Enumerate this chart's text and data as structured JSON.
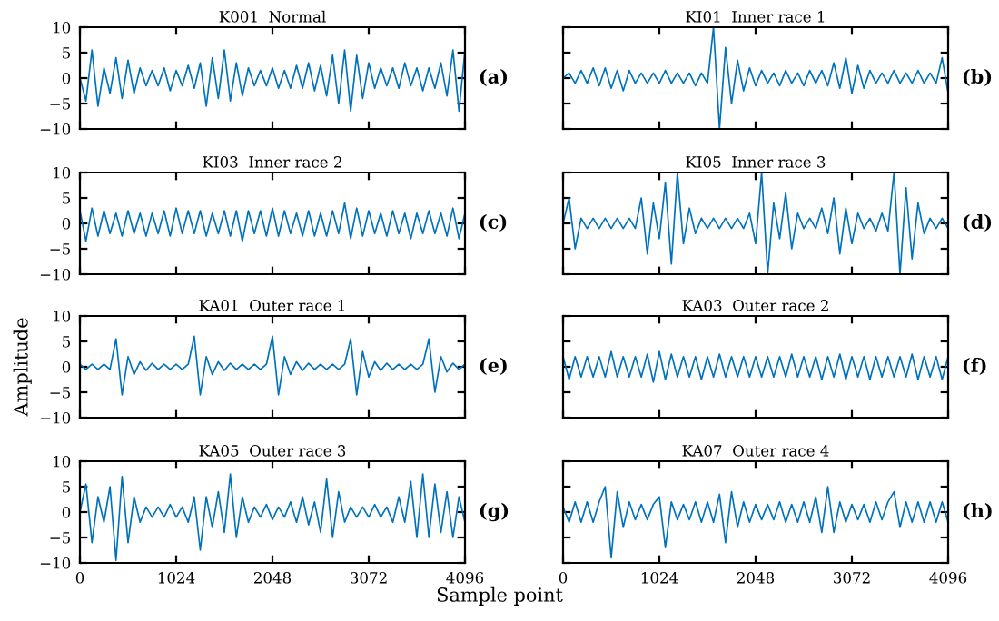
{
  "chart_data": [
    {
      "type": "line",
      "title": "K001  Normal",
      "annotations": [
        "(a)"
      ],
      "tick_labels": "y",
      "xlim": [
        0,
        4096
      ],
      "ylim": [
        -10,
        10
      ],
      "xticks": [
        0,
        1024,
        2048,
        3072,
        4096
      ],
      "yticks": [
        -10,
        -5,
        0,
        5,
        10
      ],
      "x": [
        0,
        64,
        128,
        192,
        256,
        320,
        384,
        448,
        512,
        576,
        640,
        704,
        768,
        832,
        896,
        960,
        1024,
        1088,
        1152,
        1216,
        1280,
        1344,
        1408,
        1472,
        1536,
        1600,
        1664,
        1728,
        1792,
        1856,
        1920,
        1984,
        2048,
        2112,
        2176,
        2240,
        2304,
        2368,
        2432,
        2496,
        2560,
        2624,
        2688,
        2752,
        2816,
        2880,
        2944,
        3008,
        3072,
        3136,
        3200,
        3264,
        3328,
        3392,
        3456,
        3520,
        3584,
        3648,
        3712,
        3776,
        3840,
        3904,
        3968,
        4032,
        4096
      ],
      "series": [
        {
          "color": "#0072bd",
          "values": [
            0,
            -4.5,
            5.5,
            -5.5,
            2,
            -3,
            4,
            -4,
            3.5,
            -3,
            2,
            -1.5,
            1.5,
            -1.5,
            2,
            -2.5,
            1.5,
            -1.5,
            2.5,
            -2,
            3,
            -5.5,
            4,
            -4,
            5.5,
            -4.5,
            3,
            -3.5,
            2,
            -1.5,
            1.5,
            -1.5,
            2,
            -2,
            1.5,
            -2,
            2.5,
            -2,
            3,
            -2.5,
            2.5,
            -3.5,
            4.5,
            -5,
            5.5,
            -6.5,
            4.5,
            -4,
            3,
            -2,
            2,
            -1.5,
            2,
            -2,
            3,
            -1.5,
            2,
            -2.5,
            2,
            -2,
            3,
            -3.5,
            5.5,
            -6.5,
            5.5
          ]
        }
      ]
    },
    {
      "type": "line",
      "title": "KI01  Inner race 1",
      "annotations": [
        "(b)"
      ],
      "tick_labels": false,
      "xlim": [
        0,
        4096
      ],
      "ylim": [
        -10,
        10
      ],
      "xticks": [
        0,
        1024,
        2048,
        3072,
        4096
      ],
      "yticks": [
        -10,
        -5,
        0,
        5,
        10
      ],
      "x": [
        0,
        64,
        128,
        192,
        256,
        320,
        384,
        448,
        512,
        576,
        640,
        704,
        768,
        832,
        896,
        960,
        1024,
        1088,
        1152,
        1216,
        1280,
        1344,
        1408,
        1472,
        1536,
        1600,
        1664,
        1728,
        1792,
        1856,
        1920,
        1984,
        2048,
        2112,
        2176,
        2240,
        2304,
        2368,
        2432,
        2496,
        2560,
        2624,
        2688,
        2752,
        2816,
        2880,
        2944,
        3008,
        3072,
        3136,
        3200,
        3264,
        3328,
        3392,
        3456,
        3520,
        3584,
        3648,
        3712,
        3776,
        3840,
        3904,
        3968,
        4032,
        4096
      ],
      "series": [
        {
          "color": "#0072bd",
          "values": [
            0,
            1,
            -1,
            1.5,
            -1,
            2,
            -1.5,
            2,
            -2,
            1.5,
            -2.5,
            1.5,
            -1,
            1,
            -1,
            1,
            -1,
            1.5,
            -1,
            1,
            -1,
            1,
            -1.5,
            1,
            -1,
            10,
            -10,
            6,
            -5,
            3.5,
            -2.5,
            2,
            -1.5,
            1.5,
            -1,
            1,
            -1.5,
            1.5,
            -1,
            1,
            -1.5,
            1.5,
            -1,
            1.5,
            -1.5,
            3,
            -2,
            4,
            -3,
            2.5,
            -2,
            1.5,
            -1,
            1,
            -1,
            1.5,
            -1,
            1,
            -1,
            1.5,
            -1,
            1,
            -1,
            4,
            -3
          ]
        }
      ]
    },
    {
      "type": "line",
      "title": "KI03  Inner race 2",
      "annotations": [
        "(c)"
      ],
      "tick_labels": "y",
      "xlim": [
        0,
        4096
      ],
      "ylim": [
        -10,
        10
      ],
      "xticks": [
        0,
        1024,
        2048,
        3072,
        4096
      ],
      "yticks": [
        -10,
        -5,
        0,
        5,
        10
      ],
      "x": [
        0,
        64,
        128,
        192,
        256,
        320,
        384,
        448,
        512,
        576,
        640,
        704,
        768,
        832,
        896,
        960,
        1024,
        1088,
        1152,
        1216,
        1280,
        1344,
        1408,
        1472,
        1536,
        1600,
        1664,
        1728,
        1792,
        1856,
        1920,
        1984,
        2048,
        2112,
        2176,
        2240,
        2304,
        2368,
        2432,
        2496,
        2560,
        2624,
        2688,
        2752,
        2816,
        2880,
        2944,
        3008,
        3072,
        3136,
        3200,
        3264,
        3328,
        3392,
        3456,
        3520,
        3584,
        3648,
        3712,
        3776,
        3840,
        3904,
        3968,
        4032,
        4096
      ],
      "series": [
        {
          "color": "#0072bd",
          "values": [
            2.5,
            -3.5,
            3,
            -2.5,
            2.5,
            -2,
            2,
            -2.5,
            2.5,
            -2,
            2,
            -2.5,
            2,
            -2,
            2.5,
            -2.5,
            3,
            -2,
            2.5,
            -2,
            2.5,
            -2.5,
            2,
            -2,
            2.5,
            -2.5,
            2.5,
            -3.5,
            2.5,
            -2,
            2.5,
            -2.5,
            3,
            -2.5,
            2.5,
            -2,
            2,
            -2.5,
            2.5,
            -2.5,
            2,
            -2.5,
            2.5,
            -2,
            4,
            -3,
            3,
            -2.5,
            2.5,
            -2,
            2,
            -2.5,
            2.5,
            -2,
            2,
            -3,
            2,
            -2,
            2.5,
            -2,
            2,
            -2.5,
            3,
            -3,
            2
          ]
        }
      ]
    },
    {
      "type": "line",
      "title": "KI05  Inner race 3",
      "annotations": [
        "(d)"
      ],
      "tick_labels": false,
      "xlim": [
        0,
        4096
      ],
      "ylim": [
        -10,
        10
      ],
      "xticks": [
        0,
        1024,
        2048,
        3072,
        4096
      ],
      "yticks": [
        -10,
        -5,
        0,
        5,
        10
      ],
      "x": [
        0,
        64,
        128,
        192,
        256,
        320,
        384,
        448,
        512,
        576,
        640,
        704,
        768,
        832,
        896,
        960,
        1024,
        1088,
        1152,
        1216,
        1280,
        1344,
        1408,
        1472,
        1536,
        1600,
        1664,
        1728,
        1792,
        1856,
        1920,
        1984,
        2048,
        2112,
        2176,
        2240,
        2304,
        2368,
        2432,
        2496,
        2560,
        2624,
        2688,
        2752,
        2816,
        2880,
        2944,
        3008,
        3072,
        3136,
        3200,
        3264,
        3328,
        3392,
        3456,
        3520,
        3584,
        3648,
        3712,
        3776,
        3840,
        3904,
        3968,
        4032,
        4096
      ],
      "series": [
        {
          "color": "#0072bd",
          "values": [
            0,
            5,
            -5,
            1,
            -1,
            1,
            -1,
            1,
            -1,
            1,
            -1,
            1,
            -1,
            5,
            -6,
            4,
            -3,
            8,
            -8,
            10,
            -4,
            3,
            -2,
            1,
            -1,
            1,
            -1,
            1,
            -1,
            1,
            -1,
            2,
            -4,
            10,
            -10,
            4,
            -3,
            6,
            -5,
            2,
            -1,
            1,
            -1,
            3,
            -2,
            5,
            -6,
            3,
            -4,
            2,
            -1,
            1,
            -1.5,
            2,
            -1.5,
            10,
            -10,
            7,
            -7,
            4,
            -2,
            1,
            -1,
            1,
            -1
          ]
        }
      ]
    },
    {
      "type": "line",
      "title": "KA01  Outer race 1",
      "ylabel": "Amplitude",
      "annotations": [
        "(e)"
      ],
      "tick_labels": "y",
      "xlim": [
        0,
        4096
      ],
      "ylim": [
        -10,
        10
      ],
      "xticks": [
        0,
        1024,
        2048,
        3072,
        4096
      ],
      "yticks": [
        -10,
        -5,
        0,
        5,
        10
      ],
      "x": [
        0,
        64,
        128,
        192,
        256,
        320,
        384,
        448,
        512,
        576,
        640,
        704,
        768,
        832,
        896,
        960,
        1024,
        1088,
        1152,
        1216,
        1280,
        1344,
        1408,
        1472,
        1536,
        1600,
        1664,
        1728,
        1792,
        1856,
        1920,
        1984,
        2048,
        2112,
        2176,
        2240,
        2304,
        2368,
        2432,
        2496,
        2560,
        2624,
        2688,
        2752,
        2816,
        2880,
        2944,
        3008,
        3072,
        3136,
        3200,
        3264,
        3328,
        3392,
        3456,
        3520,
        3584,
        3648,
        3712,
        3776,
        3840,
        3904,
        3968,
        4032,
        4096
      ],
      "series": [
        {
          "color": "#0072bd",
          "values": [
            0.5,
            -0.5,
            0.5,
            -0.5,
            0.5,
            -0.5,
            5.5,
            -5.5,
            2,
            -1.5,
            1,
            -0.7,
            0.7,
            -0.5,
            0.5,
            -0.5,
            0.5,
            -0.5,
            0.5,
            6,
            -5.5,
            2,
            -1.5,
            1,
            -0.7,
            0.7,
            -0.5,
            0.5,
            -0.5,
            0.5,
            -0.5,
            0.5,
            6,
            -5.5,
            2,
            -1.5,
            1,
            -0.7,
            0.7,
            -0.5,
            0.5,
            -0.5,
            0.5,
            -0.5,
            0.5,
            5.5,
            -5.5,
            3,
            -2,
            1,
            -0.7,
            0.7,
            -0.5,
            0.5,
            -0.5,
            0.5,
            -0.5,
            0.5,
            5.5,
            -5,
            2,
            -1,
            0.7,
            -0.5,
            0.5
          ]
        }
      ]
    },
    {
      "type": "line",
      "title": "KA03  Outer race 2",
      "annotations": [
        "(f)"
      ],
      "tick_labels": false,
      "xlim": [
        0,
        4096
      ],
      "ylim": [
        -10,
        10
      ],
      "xticks": [
        0,
        1024,
        2048,
        3072,
        4096
      ],
      "yticks": [
        -10,
        -5,
        0,
        5,
        10
      ],
      "x": [
        0,
        64,
        128,
        192,
        256,
        320,
        384,
        448,
        512,
        576,
        640,
        704,
        768,
        832,
        896,
        960,
        1024,
        1088,
        1152,
        1216,
        1280,
        1344,
        1408,
        1472,
        1536,
        1600,
        1664,
        1728,
        1792,
        1856,
        1920,
        1984,
        2048,
        2112,
        2176,
        2240,
        2304,
        2368,
        2432,
        2496,
        2560,
        2624,
        2688,
        2752,
        2816,
        2880,
        2944,
        3008,
        3072,
        3136,
        3200,
        3264,
        3328,
        3392,
        3456,
        3520,
        3584,
        3648,
        3712,
        3776,
        3840,
        3904,
        3968,
        4032,
        4096
      ],
      "series": [
        {
          "color": "#0072bd",
          "values": [
            2,
            -2.5,
            2,
            -2,
            2,
            -2,
            2,
            -2,
            3,
            -2,
            2,
            -2,
            2,
            -2,
            2.5,
            -3,
            3,
            -2.5,
            2.5,
            -2,
            2,
            -2,
            2,
            -2.5,
            2,
            -2,
            2.5,
            -2,
            2,
            -2,
            2,
            -2,
            2,
            -2,
            2,
            -2,
            2,
            -2,
            2.5,
            -2,
            2,
            -2,
            2,
            -2.5,
            2,
            -2,
            2.5,
            -2.5,
            2,
            -2,
            2,
            -2.5,
            2,
            -2,
            2,
            -2,
            2,
            -2,
            2.5,
            -2.5,
            2,
            -2,
            2,
            -2.5,
            2
          ]
        }
      ]
    },
    {
      "type": "line",
      "title": "KA05  Outer race 3",
      "xlabel": "Sample point",
      "annotations": [
        "(g)"
      ],
      "xlim": [
        0,
        4096
      ],
      "ylim": [
        -10,
        10
      ],
      "xticks": [
        0,
        1024,
        2048,
        3072,
        4096
      ],
      "yticks": [
        -10,
        -5,
        0,
        5,
        10
      ],
      "x": [
        0,
        64,
        128,
        192,
        256,
        320,
        384,
        448,
        512,
        576,
        640,
        704,
        768,
        832,
        896,
        960,
        1024,
        1088,
        1152,
        1216,
        1280,
        1344,
        1408,
        1472,
        1536,
        1600,
        1664,
        1728,
        1792,
        1856,
        1920,
        1984,
        2048,
        2112,
        2176,
        2240,
        2304,
        2368,
        2432,
        2496,
        2560,
        2624,
        2688,
        2752,
        2816,
        2880,
        2944,
        3008,
        3072,
        3136,
        3200,
        3264,
        3328,
        3392,
        3456,
        3520,
        3584,
        3648,
        3712,
        3776,
        3840,
        3904,
        3968,
        4032,
        4096
      ],
      "series": [
        {
          "color": "#0072bd",
          "values": [
            0,
            5.5,
            -6,
            3,
            -2,
            5,
            -9.5,
            7,
            -6,
            3,
            -2,
            1,
            -1,
            1,
            -1,
            1.5,
            -1,
            1,
            -2,
            3,
            -7.5,
            3,
            -3,
            4,
            -4,
            7.5,
            -5,
            3,
            -2,
            1,
            -1,
            1.5,
            -1.5,
            1,
            -1,
            2,
            -2,
            3,
            -2.5,
            2,
            -4,
            6.5,
            -5,
            4,
            -2,
            1,
            -1,
            1,
            -1,
            1.5,
            -1,
            1,
            -2,
            3,
            -2,
            6,
            -5,
            7.5,
            -5,
            5.5,
            -4,
            4,
            -5,
            3,
            -2
          ]
        }
      ]
    },
    {
      "type": "line",
      "title": "KA07  Outer race 4",
      "annotations": [
        "(h)"
      ],
      "tick_labels": "x",
      "xlim": [
        0,
        4096
      ],
      "ylim": [
        -10,
        10
      ],
      "xticks": [
        0,
        1024,
        2048,
        3072,
        4096
      ],
      "yticks": [
        -10,
        -5,
        0,
        5,
        10
      ],
      "x": [
        0,
        64,
        128,
        192,
        256,
        320,
        384,
        448,
        512,
        576,
        640,
        704,
        768,
        832,
        896,
        960,
        1024,
        1088,
        1152,
        1216,
        1280,
        1344,
        1408,
        1472,
        1536,
        1600,
        1664,
        1728,
        1792,
        1856,
        1920,
        1984,
        2048,
        2112,
        2176,
        2240,
        2304,
        2368,
        2432,
        2496,
        2560,
        2624,
        2688,
        2752,
        2816,
        2880,
        2944,
        3008,
        3072,
        3136,
        3200,
        3264,
        3328,
        3392,
        3456,
        3520,
        3584,
        3648,
        3712,
        3776,
        3840,
        3904,
        3968,
        4032,
        4096
      ],
      "series": [
        {
          "color": "#0072bd",
          "values": [
            1,
            -2,
            2,
            -2,
            2,
            -2,
            2,
            5,
            -9,
            4,
            -3,
            2,
            -1.5,
            1.5,
            -1.5,
            1.5,
            3,
            -7,
            2,
            -1.5,
            1.5,
            -1.5,
            2,
            -2,
            2,
            -2,
            3.5,
            -6,
            4,
            -3,
            2,
            -2,
            1.5,
            -1.5,
            1.5,
            -1.5,
            2,
            -2,
            1.5,
            -2,
            2,
            -2,
            3,
            -4,
            5,
            -4,
            2,
            -2,
            1.5,
            -1.5,
            1.5,
            -2,
            2,
            -1.5,
            2,
            4,
            -3,
            2,
            -2,
            2,
            -2,
            2,
            -2,
            2,
            -2
          ]
        }
      ]
    }
  ]
}
